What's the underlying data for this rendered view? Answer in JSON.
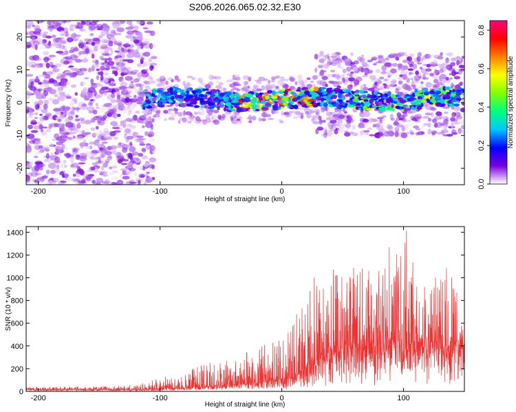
{
  "figure_title": "S206.2026.065.02.32.E30",
  "chart_data": [
    {
      "type": "heatmap",
      "xlabel": "Height of straight line (km)",
      "ylabel": "Frequency (Hz)",
      "xlim": [
        -210,
        150
      ],
      "ylim": [
        -25,
        25
      ],
      "xticks": [
        -200,
        -100,
        0,
        100
      ],
      "yticks": [
        -20,
        -10,
        0,
        10,
        20
      ],
      "colorbar": {
        "label": "Normalized spectral amplitude",
        "range": [
          0.0,
          0.85
        ],
        "ticks": [
          "0.0",
          "0.2",
          "0.4",
          "0.6",
          "0.8"
        ],
        "colormap": "rainbow",
        "colors": [
          "#ffffff",
          "#7a00e0",
          "#0000ff",
          "#00c8ff",
          "#00ff80",
          "#80ff00",
          "#ffff00",
          "#ff8000",
          "#ff0000",
          "#ff0080"
        ]
      },
      "regions": [
        {
          "name": "scattered noise",
          "x_range": [
            -210,
            -105
          ],
          "freq_range": [
            -25,
            25
          ],
          "peak_amplitude": 0.08
        },
        {
          "name": "narrowband signal",
          "x_range": [
            -115,
            150
          ],
          "freq_range": [
            -3,
            4
          ],
          "center_freq": 1,
          "peak_amplitude": 0.85
        },
        {
          "name": "broadened signal",
          "x_range": [
            30,
            150
          ],
          "freq_range": [
            -12,
            17
          ],
          "peak_amplitude": 0.1
        }
      ]
    },
    {
      "type": "line",
      "xlabel": "Height of straight line (km)",
      "ylabel": "SNR (10 * v/v)",
      "xlim": [
        -210,
        150
      ],
      "ylim": [
        0,
        1450
      ],
      "xticks": [
        -200,
        -100,
        0,
        100
      ],
      "yticks": [
        0,
        200,
        400,
        600,
        800,
        1000,
        1200,
        1400
      ],
      "series": [
        {
          "name": "SNR",
          "color": "#ee3333",
          "envelope": {
            "x": [
              -210,
              -150,
              -120,
              -100,
              -80,
              -60,
              -40,
              -20,
              0,
              15,
              30,
              50,
              70,
              90,
              100,
              110,
              120,
              130,
              140,
              150
            ],
            "baseline": [
              15,
              15,
              15,
              20,
              30,
              40,
              50,
              70,
              90,
              150,
              250,
              350,
              380,
              380,
              380,
              380,
              380,
              380,
              380,
              400
            ],
            "peak": [
              40,
              45,
              60,
              120,
              180,
              250,
              300,
              380,
              500,
              800,
              1050,
              1100,
              1150,
              1250,
              1450,
              1120,
              1050,
              1100,
              1060,
              700
            ]
          }
        }
      ]
    }
  ]
}
